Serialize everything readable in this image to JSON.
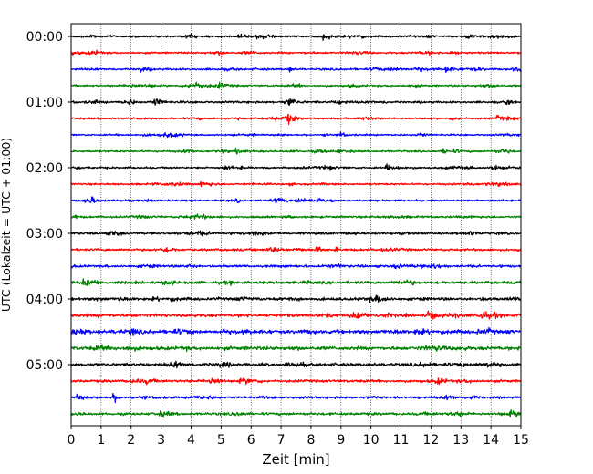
{
  "chart_data": {
    "type": "line",
    "subtype": "seismogram-helicorder",
    "xlabel": "Zeit  [min]",
    "ylabel": "UTC (Lokalzeit = UTC + 01:00)",
    "xlim": [
      0,
      15
    ],
    "x_ticks": [
      "0",
      "1",
      "2",
      "3",
      "4",
      "5",
      "6",
      "7",
      "8",
      "9",
      "10",
      "11",
      "12",
      "13",
      "14",
      "15"
    ],
    "y_tick_labels": [
      "00:00",
      "01:00",
      "02:00",
      "03:00",
      "04:00",
      "05:00"
    ],
    "trace_minutes_per_line": 15,
    "trace_start_times": [
      "00:00",
      "00:15",
      "00:30",
      "00:45",
      "01:00",
      "01:15",
      "01:30",
      "01:45",
      "02:00",
      "02:15",
      "02:30",
      "02:45",
      "03:00",
      "03:15",
      "03:30",
      "03:45",
      "04:00",
      "04:15",
      "04:30",
      "04:45",
      "05:00",
      "05:15",
      "05:30",
      "05:45"
    ],
    "trace_colors": [
      "#000000",
      "#ff0000",
      "#0000ff",
      "#008000"
    ],
    "vertical_grid": "dotted",
    "trace_noise_amplitude": [
      0.9,
      0.8,
      0.9,
      0.8,
      0.9,
      0.8,
      0.7,
      0.8,
      0.8,
      0.8,
      0.8,
      0.9,
      1.0,
      1.0,
      1.0,
      1.2,
      1.2,
      1.4,
      1.5,
      1.5,
      1.3,
      1.1,
      1.0,
      1.1
    ],
    "events": [
      {
        "trace": 0,
        "minute": 8.4,
        "amplitude": 3.5
      },
      {
        "trace": 0,
        "minute": 6.2,
        "amplitude": 3.0
      },
      {
        "trace": 0,
        "minute": 13.2,
        "amplitude": 2.5
      },
      {
        "trace": 2,
        "minute": 12.5,
        "amplitude": 3.5
      },
      {
        "trace": 2,
        "minute": 2.3,
        "amplitude": 2.5
      },
      {
        "trace": 3,
        "minute": 4.9,
        "amplitude": 3.5
      },
      {
        "trace": 4,
        "minute": 7.3,
        "amplitude": 4.0
      },
      {
        "trace": 4,
        "minute": 2.8,
        "amplitude": 3.0
      },
      {
        "trace": 4,
        "minute": 14.5,
        "amplitude": 3.0
      },
      {
        "trace": 5,
        "minute": 7.2,
        "amplitude": 4.0
      },
      {
        "trace": 5,
        "minute": 14.2,
        "amplitude": 3.0
      },
      {
        "trace": 6,
        "minute": 9.0,
        "amplitude": 2.5
      },
      {
        "trace": 7,
        "minute": 12.4,
        "amplitude": 3.5
      },
      {
        "trace": 7,
        "minute": 5.5,
        "amplitude": 2.5
      },
      {
        "trace": 8,
        "minute": 14.0,
        "amplitude": 4.5
      },
      {
        "trace": 8,
        "minute": 5.1,
        "amplitude": 3.0
      },
      {
        "trace": 8,
        "minute": 10.5,
        "amplitude": 2.5
      },
      {
        "trace": 9,
        "minute": 4.3,
        "amplitude": 2.5
      },
      {
        "trace": 10,
        "minute": 0.6,
        "amplitude": 5.0
      },
      {
        "trace": 10,
        "minute": 7.5,
        "amplitude": 3.0
      },
      {
        "trace": 12,
        "minute": 13.4,
        "amplitude": 3.0
      },
      {
        "trace": 13,
        "minute": 8.2,
        "amplitude": 3.0
      },
      {
        "trace": 14,
        "minute": 10.8,
        "amplitude": 3.5
      },
      {
        "trace": 15,
        "minute": 0.4,
        "amplitude": 2.5
      },
      {
        "trace": 16,
        "minute": 1.6,
        "amplitude": 2.5
      },
      {
        "trace": 17,
        "minute": 11.9,
        "amplitude": 6.0
      },
      {
        "trace": 17,
        "minute": 13.7,
        "amplitude": 4.5
      },
      {
        "trace": 18,
        "minute": 2.0,
        "amplitude": 3.5
      },
      {
        "trace": 18,
        "minute": 11.5,
        "amplitude": 3.0
      },
      {
        "trace": 20,
        "minute": 13.9,
        "amplitude": 3.5
      },
      {
        "trace": 21,
        "minute": 2.5,
        "amplitude": 3.0
      },
      {
        "trace": 22,
        "minute": 1.4,
        "amplitude": 4.5
      },
      {
        "trace": 22,
        "minute": 0.2,
        "amplitude": 3.0
      }
    ]
  }
}
